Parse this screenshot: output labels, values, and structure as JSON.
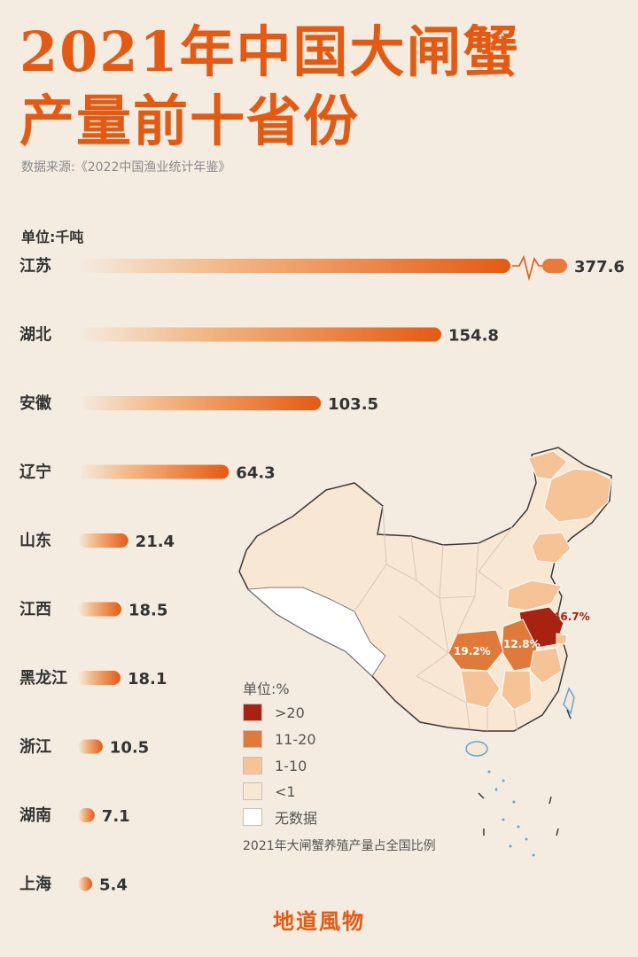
{
  "header": {
    "title_line1": "2021年中国大闸蟹",
    "title_line2": "产量前十省份",
    "source": "数据来源:《2022中国渔业统计年鉴》",
    "unit": "单位:千吨"
  },
  "chart_data": {
    "type": "bar",
    "orientation": "horizontal",
    "title": "2021年中国大闸蟹产量前十省份",
    "unit": "单位:千吨",
    "categories": [
      "江苏",
      "湖北",
      "安徽",
      "辽宁",
      "山东",
      "江西",
      "黑龙江",
      "浙江",
      "湖南",
      "上海"
    ],
    "values": [
      377.6,
      154.8,
      103.5,
      64.3,
      21.4,
      18.5,
      18.1,
      10.5,
      7.1,
      5.4
    ],
    "value_labels": [
      "377.6",
      "154.8",
      "103.5",
      "64.3",
      "21.4",
      "18.5",
      "18.1",
      "10.5",
      "7.1",
      "5.4"
    ],
    "axis_break_on_first_bar": true,
    "bar_color": "#e55a12"
  },
  "map": {
    "legend_title": "单位:%",
    "legend": [
      {
        "label": ">20",
        "color": "#a82212"
      },
      {
        "label": "11-20",
        "color": "#e07a3a"
      },
      {
        "label": "1-10",
        "color": "#f5c396"
      },
      {
        "label": "<1",
        "color": "#f8e7d2"
      },
      {
        "label": "无数据",
        "color": "#ffffff"
      }
    ],
    "caption": "2021年大闸蟹养殖产量占全国比例",
    "labels": {
      "jiangsu": "46.7%",
      "hubei": "19.2%",
      "anhui": "12.8%"
    }
  },
  "brand": "地道風物"
}
